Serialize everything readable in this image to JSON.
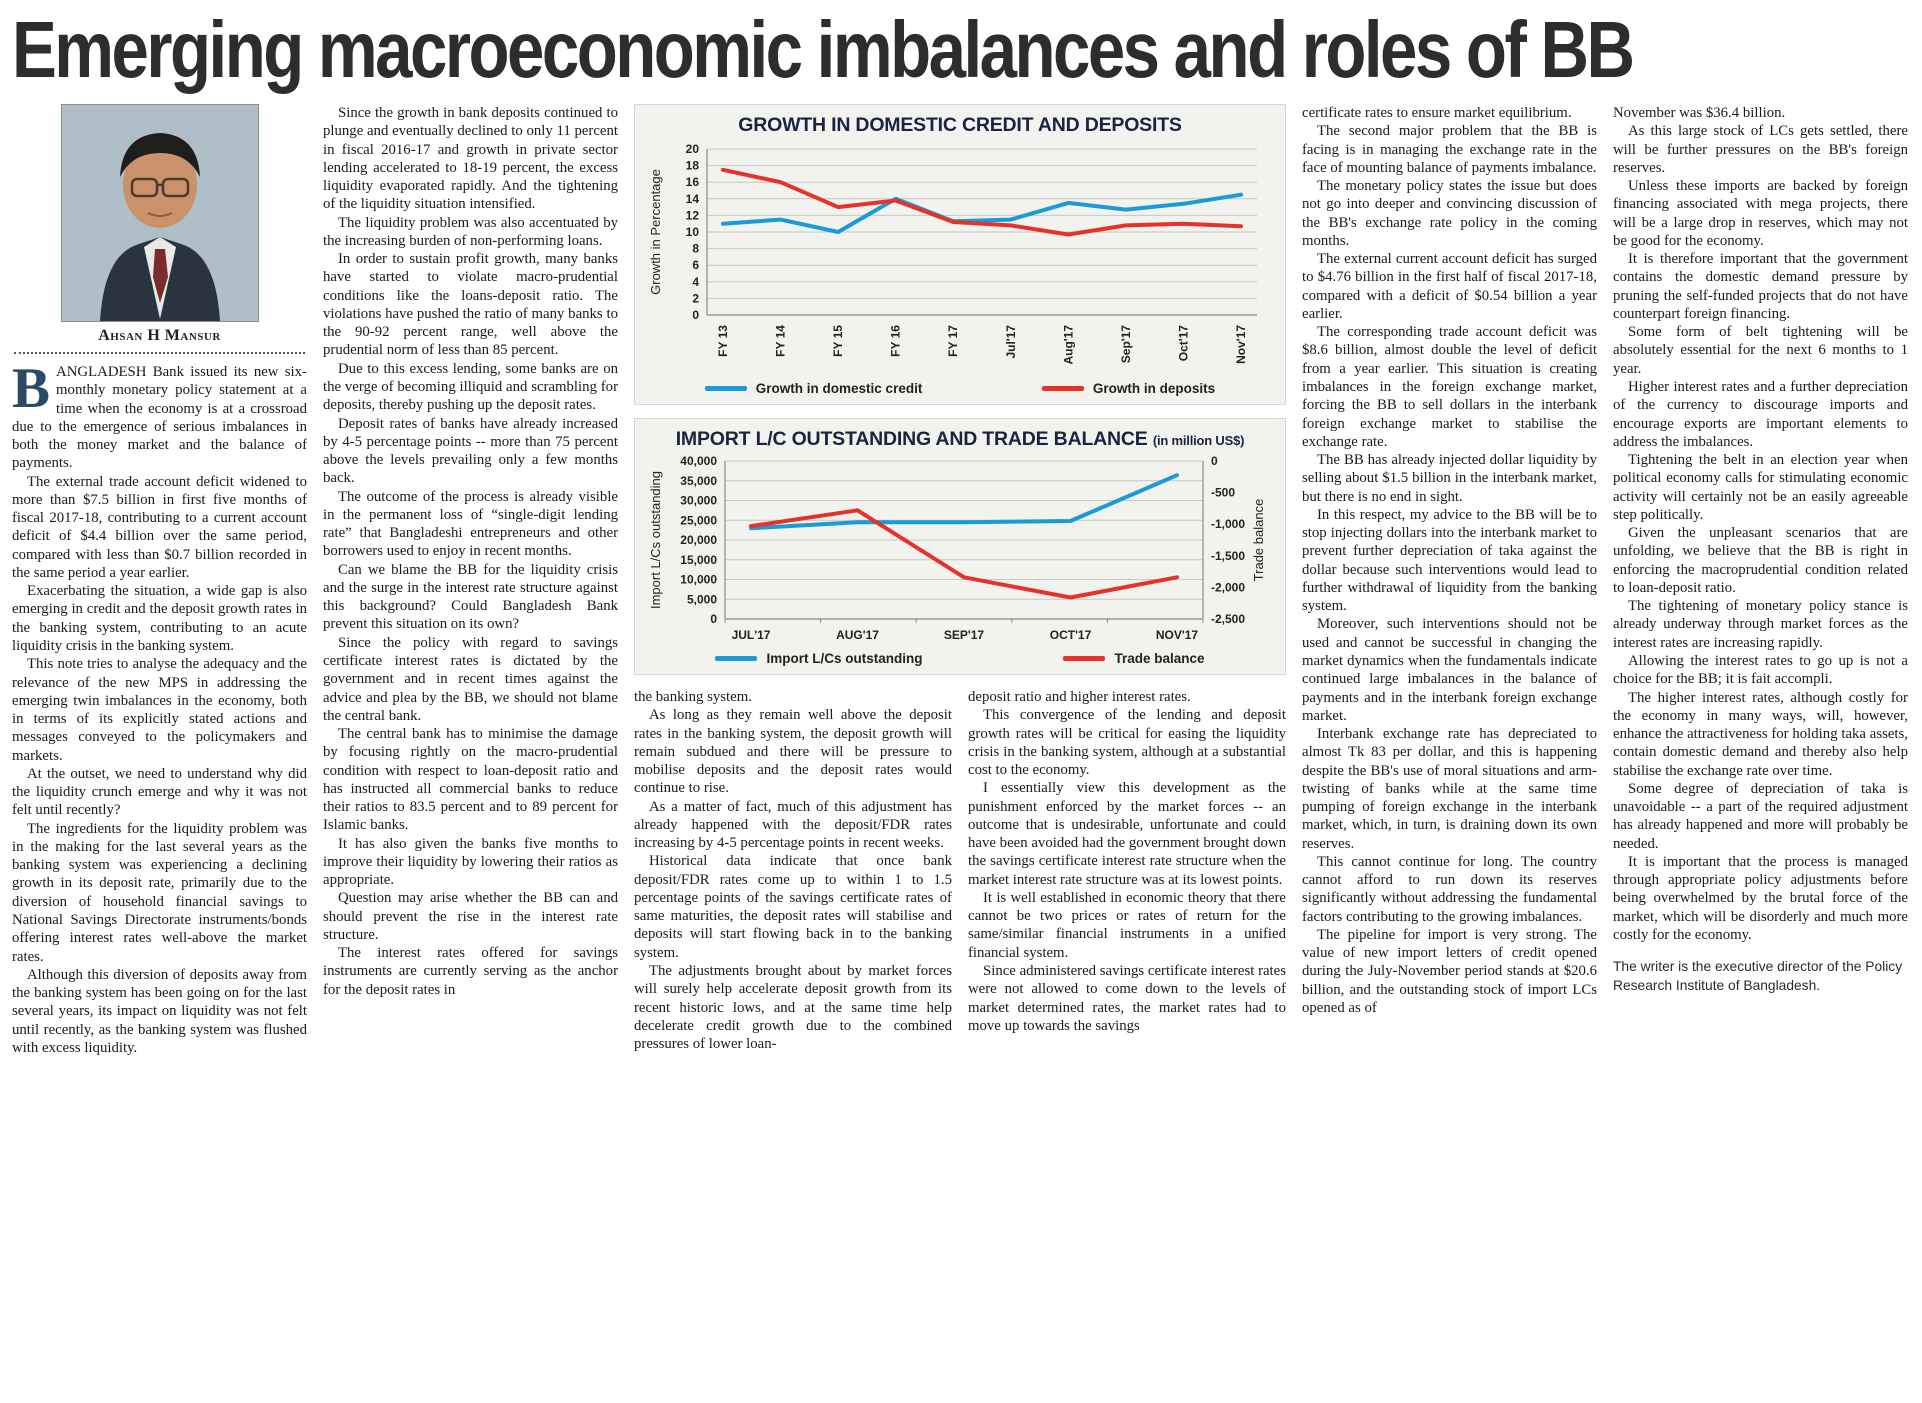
{
  "masthead": {
    "headline": "Emerging macroeconomic imbalances and roles of BB"
  },
  "author": {
    "name": "Ahsan H Mansur"
  },
  "footer_note": "The writer is the executive director of the Policy Research Institute of Bangladesh.",
  "columns": {
    "col1": [
      {
        "class": "dropcap",
        "text": "BANGLADESH Bank issued its new six-monthly monetary policy statement at a time when the economy is at a crossroad due to the emergence of serious imbalances in both the money market and the balance of payments."
      },
      "The external trade account deficit widened to more than $7.5 billion in first five months of fiscal 2017-18, contributing to a current account deficit of $4.4 billion over the same period, compared with less than $0.7 billion recorded in the same period a year earlier.",
      "Exacerbating the situation, a wide gap is also emerging in credit and the deposit growth rates in the banking system, contributing to an acute liquidity crisis in the banking system.",
      "This note tries to analyse the adequacy and the relevance of the new MPS in addressing the emerging twin imbalances in the economy, both in terms of its explicitly stated actions and messages conveyed to the policymakers and markets.",
      "At the outset, we need to understand why did the liquidity crunch emerge and why it was not felt until recently?",
      "The ingredients for the liquidity problem was in the making for the last several years as the banking system was experiencing a declining growth in its deposit rate, primarily due to the diversion of household financial savings to National Savings Directorate instruments/bonds offering interest rates well-above the market rates.",
      "Although this diversion of deposits away from the banking system has been going on for the last several years, its impact on liquidity was not felt until recently, as the banking system was flushed with excess liquidity."
    ],
    "col2": [
      "Since the growth in bank deposits continued to plunge and eventually declined to only 11 percent in fiscal 2016-17 and growth in private sector lending accelerated to 18-19 percent, the excess liquidity evaporated rapidly. And the tightening of the liquidity situation intensified.",
      "The liquidity problem was also accentuated by the increasing burden of non-performing loans.",
      "In order to sustain profit growth, many banks have started to violate macro-prudential conditions like the loans-deposit ratio. The violations have pushed the ratio of many banks to the 90-92 percent range, well above the prudential norm of less than 85 percent.",
      "Due to this excess lending, some banks are on the verge of becoming illiquid and scrambling for deposits, thereby pushing up the deposit rates.",
      "Deposit rates of banks have already increased by 4-5 percentage points -- more than 75 percent above the levels prevailing only a few months back.",
      "The outcome of the process is already visible in the permanent loss of “single-digit lending rate” that Bangladeshi entrepreneurs and other borrowers used to enjoy in recent months.",
      "Can we blame the BB for the liquidity crisis and the surge in the interest rate structure against this background? Could Bangladesh Bank prevent this situation on its own?",
      "Since the policy with regard to savings certificate interest rates is dictated by the government and in recent times against the advice and plea by the BB, we should not blame the central bank.",
      "The central bank has to minimise the damage by focusing rightly on the macro-prudential condition with respect to loan-deposit ratio and has instructed all commercial banks to reduce their ratios to 83.5 percent and to 89 percent for Islamic banks.",
      "It has also given the banks five months to improve their liquidity by lowering their ratios as appropriate.",
      "Question may arise whether the BB can and should prevent the rise in the interest rate structure.",
      "The interest rates offered for savings instruments are currently serving as the anchor for the deposit rates in"
    ],
    "col3": [
      {
        "class": "noindent",
        "text": "the banking system."
      },
      "As long as they remain well above the deposit rates in the banking system, the deposit growth will remain subdued and there will be pressure to mobilise deposits and the deposit rates would continue to rise.",
      "As a matter of fact, much of this adjustment has already happened with the deposit/FDR rates increasing by 4-5 percentage points in recent weeks.",
      "Historical data indicate that once bank deposit/FDR rates come up to within 1 to 1.5 percentage points of the savings certificate rates of same maturities, the deposit rates will stabilise and deposits will start flowing back in to the banking system.",
      "The adjustments brought about by market forces will surely help accelerate deposit growth from its recent historic lows, and at the same time help decelerate credit growth due to the combined pressures of lower loan-"
    ],
    "col4": [
      {
        "class": "noindent",
        "text": "deposit ratio and higher interest rates."
      },
      "This convergence of the lending and deposit growth rates will be critical for easing the liquidity crisis in the banking system, although at a substantial cost to the economy.",
      "I essentially view this development as the punishment enforced by the market forces -- an outcome that is undesirable, unfortunate and could have been avoided had the government brought down the savings certificate interest rate structure when the market interest rate structure was at its lowest points.",
      "It is well established in economic theory that there cannot be two prices or rates of return for the same/similar financial instruments in a unified financial system.",
      "Since administered savings certificate interest rates were not allowed to come down to the levels of market determined rates, the market rates had to move up towards the savings"
    ],
    "col5": [
      {
        "class": "noindent",
        "text": "certificate rates to ensure market equilibrium."
      },
      "The second major problem that the BB is facing is in managing the exchange rate in the face of mounting balance of payments imbalance.",
      "The monetary policy states the issue but does not go into deeper and convincing discussion of the BB's exchange rate policy in the coming months.",
      "The external current account deficit has surged to $4.76 billion in the first half of fiscal 2017-18, compared with a deficit of $0.54 billion a year earlier.",
      "The corresponding trade account deficit was $8.6 billion, almost double the level of deficit from a year earlier. This situation is creating imbalances in the foreign exchange market, forcing the BB to sell dollars in the interbank foreign exchange market to stabilise the exchange rate.",
      "The BB has already injected dollar liquidity by selling about $1.5 billion in the interbank market, but there is no end in sight.",
      "In this respect, my advice to the BB will be to stop injecting dollars into the interbank market to prevent further depreciation of taka against the dollar because such interventions would lead to further withdrawal of liquidity from the banking system.",
      "Moreover, such interventions should not be used and cannot be successful in changing the market dynamics when the fundamentals indicate continued large imbalances in the balance of payments and in the interbank foreign exchange market.",
      "Interbank exchange rate has depreciated to almost Tk 83 per dollar, and this is happening despite the BB's use of moral situations and arm-twisting of banks while at the same time pumping of foreign exchange in the interbank market, which, in turn, is draining down its own reserves.",
      "This cannot continue for long. The country cannot afford to run down its reserves significantly without addressing the fundamental factors contributing to the growing imbalances.",
      "The pipeline for import is very strong. The value of new import letters of credit opened during the July-November period stands at $20.6 billion, and the outstanding stock of import LCs opened as of"
    ],
    "col6": [
      {
        "class": "noindent",
        "text": "November was $36.4 billion."
      },
      "As this large stock of LCs gets settled, there will be further pressures on the BB's foreign reserves.",
      "Unless these imports are backed by foreign financing associated with mega projects, there will be a large drop in reserves, which may not be good for the economy.",
      "It is therefore important that the government contains the domestic demand pressure by pruning the self-funded projects that do not have counterpart foreign financing.",
      "Some form of belt tightening will be absolutely essential for the next 6 months to 1 year.",
      "Higher interest rates and a further depreciation of the currency to discourage imports and encourage exports are important elements to address the imbalances.",
      "Tightening the belt in an election year when political economy calls for stimulating economic activity will certainly not be an easily agreeable step politically.",
      "Given the unpleasant scenarios that are unfolding, we believe that the BB is right in enforcing the macroprudential condition related to loan-deposit ratio.",
      "The tightening of monetary policy stance is already underway through market forces as the interest rates are increasing rapidly.",
      "Allowing the interest rates to go up is not a choice for the BB; it is fait accompli.",
      "The higher interest rates, although costly for the economy in many ways, will, however, enhance the attractiveness for holding taka assets, contain domestic demand and thereby also help stabilise the exchange rate over time.",
      "Some degree of depreciation of taka is unavoidable -- a part of the required adjustment has already happened and more will probably be needed.",
      "It is important that the process is managed through appropriate policy adjustments before being overwhelmed by the brutal force of the market, which will be disorderly and much more costly for the economy."
    ]
  },
  "chart_data": [
    {
      "type": "line",
      "title": "GROWTH IN DOMESTIC CREDIT AND DEPOSITS",
      "ylabel": "Growth in Percentage",
      "ylim": [
        0,
        20
      ],
      "ytick_step": 2,
      "grid": true,
      "legend_position": "bottom",
      "categories": [
        "FY 13",
        "FY 14",
        "FY 15",
        "FY 16",
        "FY 17",
        "Jul'17",
        "Aug'17",
        "Sep'17",
        "Oct'17",
        "Nov'17"
      ],
      "series": [
        {
          "name": "Growth in domestic credit",
          "color": "#1b9ad8",
          "values": [
            11,
            11.5,
            10,
            14,
            11.3,
            11.5,
            13.5,
            12.7,
            13.4,
            14.5
          ]
        },
        {
          "name": "Growth in deposits",
          "color": "#e5332a",
          "values": [
            17.5,
            16,
            13,
            13.8,
            11.2,
            10.8,
            9.7,
            10.8,
            11,
            10.7
          ]
        }
      ]
    },
    {
      "type": "line",
      "title": "IMPORT L/C OUTSTANDING AND TRADE BALANCE",
      "subtitle": "(in million US$)",
      "ylabel_left": "Import L/Cs outstanding",
      "ylabel_right": "Trade balance",
      "ylim_left": [
        0,
        40000
      ],
      "ytick_step_left": 5000,
      "ylim_right": [
        -2500,
        0
      ],
      "ytick_step_right": 500,
      "grid": true,
      "legend_position": "bottom",
      "categories": [
        "JUL'17",
        "AUG'17",
        "SEP'17",
        "OCT'17",
        "NOV'17"
      ],
      "series": [
        {
          "name": "Import L/Cs outstanding",
          "axis": "left",
          "color": "#1b9ad8",
          "values": [
            23000,
            24500,
            24500,
            24800,
            36400
          ]
        },
        {
          "name": "Trade balance",
          "axis": "right",
          "color": "#e5332a",
          "values": [
            -1030,
            -780,
            -1840,
            -2160,
            -1840
          ]
        }
      ]
    }
  ]
}
